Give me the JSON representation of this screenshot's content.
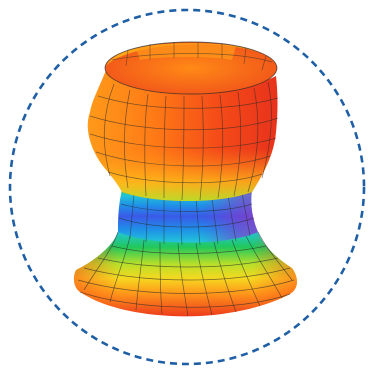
{
  "figure": {
    "subject": "goblet-shaped-3d-surface",
    "colors": {
      "frame_border": "#1f5fa6",
      "mesh_line": "#2a2a2a",
      "colormap": [
        "#1a3fe0",
        "#1f8fe8",
        "#22c6d8",
        "#22c85a",
        "#9bdc2a",
        "#f0e020",
        "#ff9a1a",
        "#ff5a1a",
        "#e8321c"
      ]
    }
  }
}
